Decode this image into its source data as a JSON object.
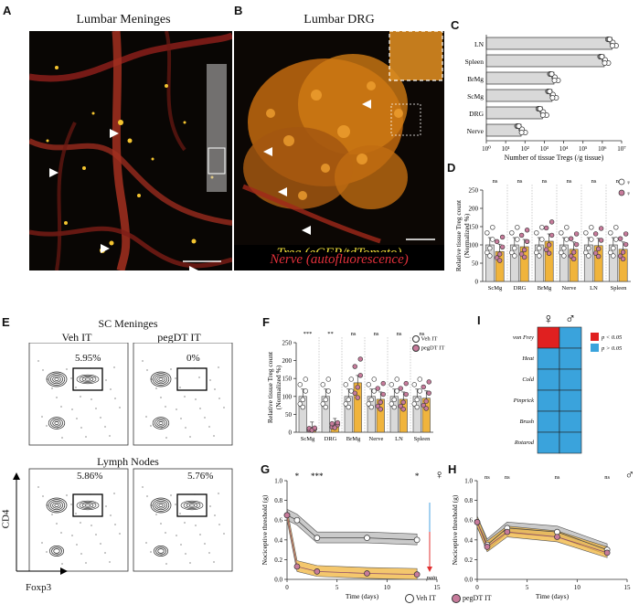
{
  "panels": {
    "A": {
      "letter": "A",
      "title": "Lumbar Meninges"
    },
    "B": {
      "letter": "B",
      "title": "Lumbar DRG",
      "legend_treg": "Treg (eGFP/tdTomato)",
      "legend_nerve": "Nerve (autofluorescence)"
    },
    "C": {
      "letter": "C"
    },
    "D": {
      "letter": "D"
    },
    "E": {
      "letter": "E",
      "title_top": "SC Meninges",
      "col1": "Veh IT",
      "col2": "pegDT IT",
      "title_bottom": "Lymph Nodes",
      "gate_tl": "5.95%",
      "gate_tr": "0%",
      "gate_bl": "5.86%",
      "gate_br": "5.76%",
      "ylabel": "CD4",
      "xlabel": "Foxp3"
    },
    "F": {
      "letter": "F",
      "legend_veh": "Veh IT",
      "legend_peg": "pegDT IT"
    },
    "G": {
      "letter": "G"
    },
    "H": {
      "letter": "H"
    },
    "I": {
      "letter": "I"
    }
  },
  "colors": {
    "veh": "#d9d9d9",
    "peg_bar": "#f0b43c",
    "peg_point": "#c77b9b",
    "red_sig": "#e02020",
    "blue_ns": "#3aa3dc"
  },
  "chart_data": [
    {
      "id": "C",
      "type": "bar",
      "orientation": "horizontal",
      "categories": [
        "LN",
        "Spleen",
        "BrMg",
        "ScMg",
        "DRG",
        "Nerve"
      ],
      "values_log10": [
        6.5,
        6.1,
        3.5,
        3.4,
        2.9,
        1.8
      ],
      "xlabel": "Number of tissue Tregs (/g tissue)",
      "xticks": [
        "10⁰",
        "10¹",
        "10²",
        "10³",
        "10⁴",
        "10⁵",
        "10⁶",
        "10⁷"
      ],
      "xlim_log10": [
        0,
        7
      ]
    },
    {
      "id": "D",
      "type": "bar",
      "categories": [
        "ScMg",
        "DRG",
        "BrMg",
        "Nerve",
        "LN",
        "Spleen"
      ],
      "series": [
        {
          "values": [
            100,
            100,
            100,
            100,
            100,
            100
          ]
        },
        {
          "values": [
            82,
            95,
            110,
            88,
            98,
            88
          ]
        }
      ],
      "sig": [
        "ns",
        "ns",
        "ns",
        "ns",
        "ns",
        "ns"
      ],
      "ylabel": "Relative tissue Treg count (Normalized %)",
      "yticks": [
        0,
        50,
        100,
        150,
        200,
        250
      ],
      "ylim": [
        0,
        250
      ]
    },
    {
      "id": "F",
      "type": "bar",
      "categories": [
        "ScMg",
        "DRG",
        "BrMg",
        "Nerve",
        "LN",
        "Spleen"
      ],
      "series": [
        {
          "name": "Veh IT",
          "values": [
            100,
            100,
            100,
            100,
            100,
            100
          ]
        },
        {
          "name": "pegDT IT",
          "values": [
            8,
            18,
            138,
            92,
            92,
            95
          ]
        }
      ],
      "sig": [
        "***",
        "**",
        "ns",
        "ns",
        "ns",
        "ns"
      ],
      "ylabel": "Relative tissue Treg count (Normalized %)",
      "yticks": [
        0,
        50,
        100,
        150,
        200,
        250
      ],
      "ylim": [
        0,
        250
      ]
    },
    {
      "id": "G",
      "type": "line",
      "x": [
        0,
        1,
        3,
        8,
        13
      ],
      "series": [
        {
          "name": "Veh IT",
          "values": [
            0.65,
            0.6,
            0.42,
            0.42,
            0.4
          ]
        },
        {
          "name": "pegDT IT",
          "values": [
            0.65,
            0.13,
            0.08,
            0.06,
            0.05
          ]
        }
      ],
      "sig": [
        "*",
        "***",
        "",
        "*"
      ],
      "sig_x": [
        1,
        3,
        8,
        13
      ],
      "xlabel": "Time (days)",
      "ylabel": "Nociceptive threshold (g)",
      "xticks": [
        0,
        5,
        10,
        15
      ],
      "yticks": [
        0.0,
        0.2,
        0.4,
        0.6,
        0.8,
        1.0
      ],
      "xlim": [
        0,
        15
      ],
      "ylim": [
        0,
        1.0
      ],
      "annotation": "pain",
      "sex": "♀"
    },
    {
      "id": "H",
      "type": "line",
      "x": [
        0,
        1,
        3,
        8,
        13
      ],
      "series": [
        {
          "name": "Veh IT",
          "values": [
            0.58,
            0.35,
            0.52,
            0.48,
            0.3
          ]
        },
        {
          "name": "pegDT IT",
          "values": [
            0.58,
            0.33,
            0.48,
            0.43,
            0.27
          ]
        }
      ],
      "sig": [
        "ns",
        "ns",
        "ns",
        "ns"
      ],
      "sig_x": [
        1,
        3,
        8,
        13
      ],
      "xlabel": "Time (days)",
      "ylabel": "Nociceptive threshold (g)",
      "xticks": [
        0,
        5,
        10,
        15
      ],
      "yticks": [
        0.0,
        0.2,
        0.4,
        0.6,
        0.8,
        1.0
      ],
      "xlim": [
        0,
        15
      ],
      "ylim": [
        0,
        1.0
      ],
      "sex": "♂"
    },
    {
      "id": "I",
      "type": "heatmap",
      "rows": [
        "von Frey",
        "Heat",
        "Cold",
        "Pinprick",
        "Brush",
        "Rotarod"
      ],
      "cols": [
        "♀",
        "♂"
      ],
      "values": [
        [
          "p < 0.05",
          "p > 0.05"
        ],
        [
          "p > 0.05",
          "p > 0.05"
        ],
        [
          "p > 0.05",
          "p > 0.05"
        ],
        [
          "p > 0.05",
          "p > 0.05"
        ],
        [
          "p > 0.05",
          "p > 0.05"
        ],
        [
          "p > 0.05",
          "p > 0.05"
        ]
      ],
      "legend": [
        "p < 0.05",
        "p > 0.05"
      ]
    }
  ]
}
